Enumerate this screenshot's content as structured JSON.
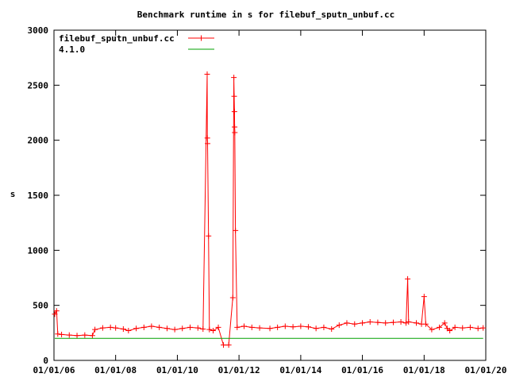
{
  "chart_data": {
    "type": "line",
    "title": "Benchmark runtime in s for filebuf_sputn_unbuf.cc",
    "xlabel": "",
    "ylabel": "s",
    "ylim": [
      0,
      3000
    ],
    "xlim": [
      "2006-01-01",
      "2020-01-01"
    ],
    "y_ticks": [
      0,
      500,
      1000,
      1500,
      2000,
      2500,
      3000
    ],
    "x_ticks": [
      {
        "date": "2006-01-01",
        "label": "01/01/06"
      },
      {
        "date": "2008-01-01",
        "label": "01/01/08"
      },
      {
        "date": "2010-01-01",
        "label": "01/01/10"
      },
      {
        "date": "2012-01-01",
        "label": "01/01/12"
      },
      {
        "date": "2014-01-01",
        "label": "01/01/14"
      },
      {
        "date": "2016-01-01",
        "label": "01/01/16"
      },
      {
        "date": "2018-01-01",
        "label": "01/01/18"
      },
      {
        "date": "2020-01-01",
        "label": "01/01/20"
      }
    ],
    "grid": false,
    "legend_position": "top-left",
    "series": [
      {
        "name": "filebuf_sputn_unbuf.cc",
        "color": "#ff0000",
        "marker": "plus",
        "points": [
          [
            "2006-01-10",
            420
          ],
          [
            "2006-02-01",
            450
          ],
          [
            "2006-02-15",
            240
          ],
          [
            "2006-04-01",
            235
          ],
          [
            "2006-07-01",
            230
          ],
          [
            "2006-10-01",
            225
          ],
          [
            "2007-01-01",
            230
          ],
          [
            "2007-04-01",
            225
          ],
          [
            "2007-05-01",
            280
          ],
          [
            "2007-08-01",
            295
          ],
          [
            "2007-11-01",
            300
          ],
          [
            "2008-01-01",
            295
          ],
          [
            "2008-04-01",
            285
          ],
          [
            "2008-06-01",
            270
          ],
          [
            "2008-09-01",
            290
          ],
          [
            "2008-12-01",
            300
          ],
          [
            "2009-03-01",
            310
          ],
          [
            "2009-06-01",
            300
          ],
          [
            "2009-09-01",
            290
          ],
          [
            "2009-12-01",
            280
          ],
          [
            "2010-03-01",
            290
          ],
          [
            "2010-06-01",
            300
          ],
          [
            "2010-09-01",
            295
          ],
          [
            "2010-11-01",
            285
          ],
          [
            "2010-12-20",
            2600
          ],
          [
            "2010-12-22",
            2020
          ],
          [
            "2010-12-25",
            1970
          ],
          [
            "2011-01-05",
            1130
          ],
          [
            "2011-01-15",
            280
          ],
          [
            "2011-03-01",
            270
          ],
          [
            "2011-05-01",
            300
          ],
          [
            "2011-07-01",
            140
          ],
          [
            "2011-09-01",
            140
          ],
          [
            "2011-10-20",
            570
          ],
          [
            "2011-11-01",
            2570
          ],
          [
            "2011-11-05",
            2400
          ],
          [
            "2011-11-08",
            2260
          ],
          [
            "2011-11-10",
            2120
          ],
          [
            "2011-11-12",
            2070
          ],
          [
            "2011-11-20",
            1180
          ],
          [
            "2011-12-10",
            300
          ],
          [
            "2012-03-01",
            310
          ],
          [
            "2012-06-01",
            300
          ],
          [
            "2012-09-01",
            295
          ],
          [
            "2013-01-01",
            290
          ],
          [
            "2013-04-01",
            300
          ],
          [
            "2013-07-01",
            310
          ],
          [
            "2013-10-01",
            305
          ],
          [
            "2014-01-01",
            310
          ],
          [
            "2014-04-01",
            305
          ],
          [
            "2014-07-01",
            290
          ],
          [
            "2014-10-01",
            300
          ],
          [
            "2015-01-01",
            285
          ],
          [
            "2015-04-01",
            320
          ],
          [
            "2015-07-01",
            340
          ],
          [
            "2015-10-01",
            330
          ],
          [
            "2016-01-01",
            340
          ],
          [
            "2016-04-01",
            350
          ],
          [
            "2016-07-01",
            345
          ],
          [
            "2016-10-01",
            340
          ],
          [
            "2017-01-01",
            345
          ],
          [
            "2017-04-01",
            350
          ],
          [
            "2017-06-01",
            340
          ],
          [
            "2017-06-20",
            740
          ],
          [
            "2017-07-01",
            350
          ],
          [
            "2017-10-01",
            340
          ],
          [
            "2017-12-01",
            330
          ],
          [
            "2018-01-01",
            580
          ],
          [
            "2018-01-20",
            330
          ],
          [
            "2018-04-01",
            280
          ],
          [
            "2018-07-01",
            300
          ],
          [
            "2018-09-01",
            340
          ],
          [
            "2018-10-01",
            290
          ],
          [
            "2018-11-01",
            270
          ],
          [
            "2019-01-01",
            300
          ],
          [
            "2019-04-01",
            295
          ],
          [
            "2019-07-01",
            300
          ],
          [
            "2019-10-01",
            290
          ],
          [
            "2019-12-01",
            295
          ]
        ]
      },
      {
        "name": "4.1.0",
        "color": "#00a000",
        "marker": "none",
        "points": [
          [
            "2006-01-10",
            200
          ],
          [
            "2019-12-01",
            200
          ]
        ]
      }
    ]
  }
}
